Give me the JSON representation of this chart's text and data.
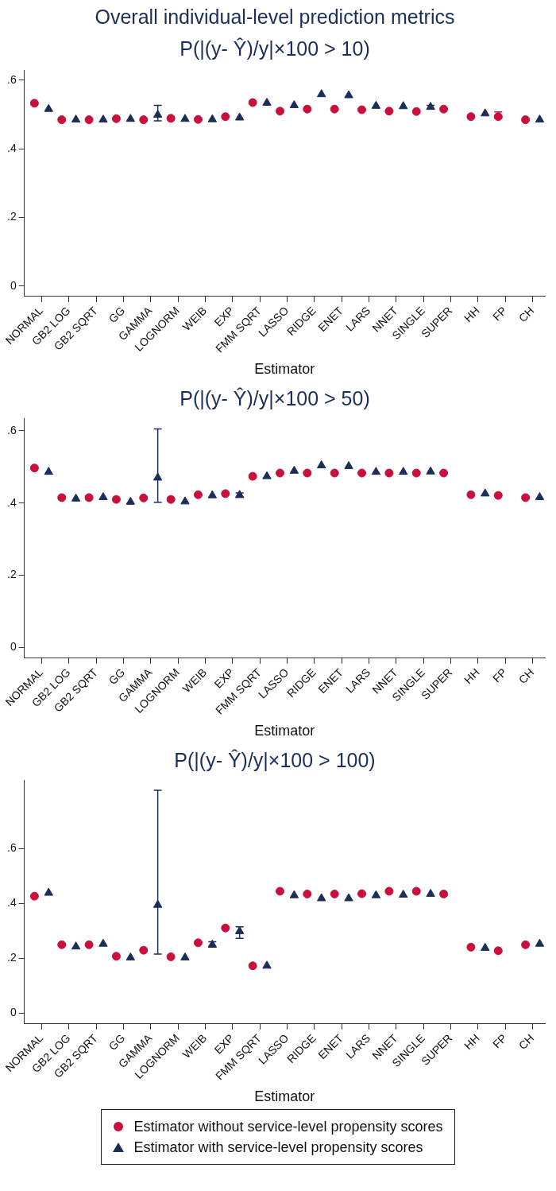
{
  "chart_data": [
    {
      "type": "scatter",
      "title": "Overall individual-level prediction metrics",
      "subtitle": "P(|(y- Ŷ)/y|×100 > 10)",
      "xlabel": "Estimator",
      "categories": [
        "NORMAL",
        "GB2 LOG",
        "GB2 SQRT",
        "GG",
        "GAMMA",
        "LOGNORM",
        "WEIB",
        "EXP",
        "FMM SQRT",
        "LASSO",
        "RIDGE",
        "ENET",
        "LARS",
        "NNET",
        "SINGLE",
        "SUPER",
        "HH",
        "FP",
        "CH"
      ],
      "series": [
        {
          "color": "#c8103c",
          "marker": "circle",
          "values": [
            0.533,
            0.485,
            0.485,
            0.488,
            0.485,
            0.489,
            0.486,
            0.494,
            0.535,
            0.51,
            0.516,
            0.516,
            0.514,
            0.51,
            0.509,
            0.516,
            0.494,
            0.494,
            0.485
          ],
          "errors": [
            null,
            null,
            null,
            null,
            null,
            null,
            null,
            null,
            null,
            null,
            null,
            null,
            null,
            null,
            null,
            null,
            null,
            [
              0.49,
              0.508
            ],
            null
          ]
        },
        {
          "color": "#1a2e5a",
          "marker": "triangle",
          "values": [
            0.516,
            0.485,
            0.485,
            0.487,
            0.499,
            0.487,
            0.486,
            0.491,
            0.534,
            0.527,
            0.559,
            0.556,
            0.525,
            0.524,
            0.522,
            null,
            0.503,
            null,
            0.485
          ],
          "errors": [
            null,
            null,
            null,
            null,
            [
              0.482,
              0.527
            ],
            null,
            null,
            null,
            null,
            null,
            null,
            null,
            null,
            null,
            [
              0.517,
              0.527
            ],
            null,
            null,
            null,
            null
          ]
        }
      ],
      "ylim": [
        -0.03,
        0.63
      ],
      "yticks": [
        {
          "value": 0,
          "label": "0"
        },
        {
          "value": 0.2,
          "label": ".2"
        },
        {
          "value": 0.4,
          "label": ".4"
        },
        {
          "value": 0.6,
          "label": ".6"
        }
      ],
      "grid": false,
      "legend": false
    },
    {
      "type": "scatter",
      "title": "P(|(y- Ŷ)/y|×100 > 50)",
      "xlabel": "Estimator",
      "categories": [
        "NORMAL",
        "GB2 LOG",
        "GB2 SQRT",
        "GG",
        "GAMMA",
        "LOGNORM",
        "WEIB",
        "EXP",
        "FMM SQRT",
        "LASSO",
        "RIDGE",
        "ENET",
        "LARS",
        "NNET",
        "SINGLE",
        "SUPER",
        "HH",
        "FP",
        "CH"
      ],
      "series": [
        {
          "color": "#c8103c",
          "marker": "circle",
          "values": [
            0.497,
            0.415,
            0.415,
            0.41,
            0.414,
            0.41,
            0.423,
            0.426,
            0.474,
            0.483,
            0.483,
            0.483,
            0.483,
            0.483,
            0.483,
            0.483,
            0.423,
            0.421,
            0.415
          ]
        },
        {
          "color": "#1a2e5a",
          "marker": "triangle",
          "values": [
            0.486,
            0.412,
            0.416,
            0.403,
            0.47,
            0.404,
            0.421,
            0.422,
            0.474,
            0.489,
            0.504,
            0.502,
            0.486,
            0.486,
            0.487,
            null,
            0.426,
            null,
            0.416
          ],
          "errors": [
            null,
            null,
            null,
            null,
            [
              0.402,
              0.605
            ],
            null,
            null,
            [
              0.416,
              0.428
            ],
            null,
            null,
            null,
            null,
            null,
            null,
            null,
            null,
            null,
            null,
            null
          ]
        }
      ],
      "ylim": [
        -0.03,
        0.635
      ],
      "yticks": [
        {
          "value": 0,
          "label": "0"
        },
        {
          "value": 0.2,
          "label": ".2"
        },
        {
          "value": 0.4,
          "label": ".4"
        },
        {
          "value": 0.6,
          "label": ".6"
        }
      ],
      "grid": false,
      "legend": false
    },
    {
      "type": "scatter",
      "title": "P(|(y- Ŷ)/y|×100 > 100)",
      "xlabel": "Estimator",
      "categories": [
        "NORMAL",
        "GB2 LOG",
        "GB2 SQRT",
        "GG",
        "GAMMA",
        "LOGNORM",
        "WEIB",
        "EXP",
        "FMM SQRT",
        "LASSO",
        "RIDGE",
        "ENET",
        "LARS",
        "NNET",
        "SINGLE",
        "SUPER",
        "HH",
        "FP",
        "CH"
      ],
      "series": [
        {
          "name": "Estimator without service-level propensity scores",
          "color": "#c8103c",
          "marker": "circle",
          "values": [
            0.426,
            0.249,
            0.249,
            0.207,
            0.229,
            0.205,
            0.256,
            0.31,
            0.172,
            0.444,
            0.434,
            0.434,
            0.435,
            0.444,
            0.444,
            0.434,
            0.24,
            0.227,
            0.249
          ]
        },
        {
          "name": "Estimator with service-level propensity scores",
          "color": "#1a2e5a",
          "marker": "triangle",
          "values": [
            0.438,
            0.242,
            0.252,
            0.202,
            0.394,
            0.202,
            0.249,
            0.298,
            0.172,
            0.429,
            0.418,
            0.418,
            0.429,
            0.431,
            0.434,
            null,
            0.237,
            null,
            0.252
          ],
          "errors": [
            null,
            null,
            null,
            null,
            [
              0.215,
              0.812
            ],
            null,
            [
              0.24,
              0.26
            ],
            [
              0.272,
              0.314
            ],
            null,
            null,
            null,
            null,
            null,
            null,
            null,
            null,
            null,
            null,
            null
          ]
        }
      ],
      "ylim": [
        -0.04,
        0.85
      ],
      "yticks": [
        {
          "value": 0,
          "label": "0"
        },
        {
          "value": 0.2,
          "label": ".2"
        },
        {
          "value": 0.4,
          "label": ".4"
        },
        {
          "value": 0.6,
          "label": ".6"
        }
      ],
      "grid": false,
      "legend": "bottom"
    }
  ]
}
